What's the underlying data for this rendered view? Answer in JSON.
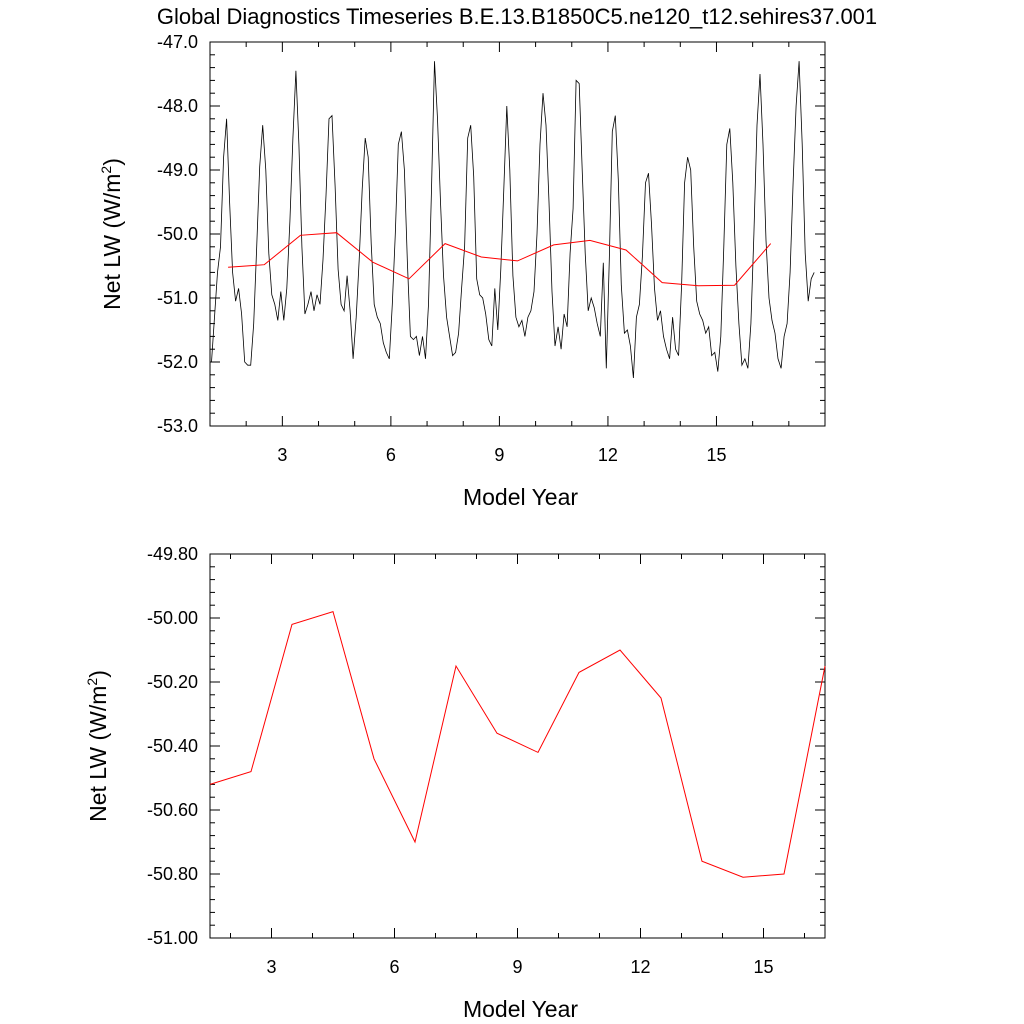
{
  "title": "Global Diagnostics Timeseries B.E.13.B1850C5.ne120_t12.sehires37.001",
  "chart_data": [
    {
      "type": "line",
      "xlabel": "Model Year",
      "ylabel_main": "Net LW (W/m",
      "ylabel_sup": "2",
      "ylabel_close": ")",
      "xlim": [
        1.0,
        18.0
      ],
      "ylim": [
        -53.0,
        -47.0
      ],
      "xticks": [
        3,
        6,
        9,
        12,
        15
      ],
      "yticks": [
        -53.0,
        -52.0,
        -51.0,
        -50.0,
        -49.0,
        -48.0,
        -47.0
      ],
      "ytick_labels": [
        "-53.0",
        "-52.0",
        "-51.0",
        "-50.0",
        "-49.0",
        "-48.0",
        "-47.0"
      ],
      "grid": false,
      "series": [
        {
          "color": "#000000",
          "x_start": 1.0417,
          "x_step": 0.0833,
          "values": [
            -52.0,
            -51.3,
            -50.6,
            -50.2,
            -48.8,
            -48.2,
            -49.5,
            -50.6,
            -51.05,
            -50.85,
            -51.25,
            -52.0,
            -52.05,
            -52.05,
            -51.4,
            -50.2,
            -48.95,
            -48.3,
            -49.0,
            -50.3,
            -50.95,
            -51.1,
            -51.35,
            -50.9,
            -51.35,
            -50.85,
            -49.8,
            -48.5,
            -47.45,
            -48.6,
            -50.2,
            -51.25,
            -51.1,
            -50.9,
            -51.2,
            -50.95,
            -51.1,
            -50.4,
            -49.4,
            -48.2,
            -48.15,
            -49.25,
            -50.55,
            -51.1,
            -51.2,
            -50.65,
            -51.2,
            -51.95,
            -51.3,
            -50.4,
            -49.3,
            -48.5,
            -48.8,
            -50.15,
            -51.1,
            -51.3,
            -51.4,
            -51.7,
            -51.85,
            -51.95,
            -51.1,
            -50.0,
            -48.6,
            -48.4,
            -49.0,
            -50.45,
            -51.6,
            -51.65,
            -51.6,
            -51.9,
            -51.6,
            -51.95,
            -51.1,
            -49.3,
            -47.3,
            -48.2,
            -49.5,
            -50.65,
            -51.3,
            -51.6,
            -51.9,
            -51.85,
            -51.55,
            -50.85,
            -50.2,
            -48.5,
            -48.3,
            -49.1,
            -50.7,
            -50.95,
            -51.0,
            -51.25,
            -51.65,
            -51.75,
            -50.85,
            -51.5,
            -50.55,
            -49.3,
            -48.0,
            -49.0,
            -50.65,
            -51.3,
            -51.45,
            -51.35,
            -51.6,
            -51.3,
            -51.2,
            -50.9,
            -50.0,
            -48.6,
            -47.8,
            -48.3,
            -49.5,
            -50.9,
            -51.75,
            -51.45,
            -51.8,
            -51.25,
            -51.45,
            -50.3,
            -49.6,
            -47.6,
            -47.65,
            -49.0,
            -50.3,
            -51.2,
            -51.0,
            -51.15,
            -51.4,
            -51.6,
            -50.45,
            -52.1,
            -50.4,
            -48.4,
            -48.15,
            -49.15,
            -50.8,
            -51.55,
            -51.5,
            -51.75,
            -52.25,
            -51.3,
            -51.1,
            -50.35,
            -49.2,
            -49.05,
            -49.85,
            -50.85,
            -51.35,
            -51.2,
            -51.6,
            -51.8,
            -51.95,
            -51.3,
            -51.8,
            -51.9,
            -50.8,
            -49.2,
            -48.8,
            -49.0,
            -50.2,
            -51.05,
            -51.25,
            -51.35,
            -51.55,
            -51.45,
            -51.9,
            -51.85,
            -52.15,
            -51.6,
            -50.2,
            -48.6,
            -48.35,
            -49.2,
            -50.5,
            -51.4,
            -52.05,
            -51.95,
            -52.1,
            -51.4,
            -50.0,
            -48.3,
            -47.5,
            -48.6,
            -50.1,
            -51.0,
            -51.35,
            -51.55,
            -51.95,
            -52.1,
            -51.6,
            -51.4,
            -50.6,
            -49.2,
            -48.0,
            -47.3,
            -48.6,
            -50.3,
            -51.05,
            -50.7,
            -50.6
          ]
        },
        {
          "color": "#ff0000",
          "x": [
            1.5,
            2.5,
            3.5,
            4.5,
            5.5,
            6.5,
            7.5,
            8.5,
            9.5,
            10.5,
            11.5,
            12.5,
            13.5,
            14.5,
            15.5,
            16.5
          ],
          "values": [
            -50.52,
            -50.48,
            -50.02,
            -49.98,
            -50.44,
            -50.7,
            -50.15,
            -50.36,
            -50.42,
            -50.17,
            -50.1,
            -50.25,
            -50.76,
            -50.81,
            -50.8,
            -50.15
          ]
        }
      ]
    },
    {
      "type": "line",
      "xlabel": "Model Year",
      "ylabel_main": "Net LW (W/m",
      "ylabel_sup": "2",
      "ylabel_close": ")",
      "xlim": [
        1.5,
        16.5
      ],
      "ylim": [
        -51.0,
        -49.8
      ],
      "xticks": [
        3,
        6,
        9,
        12,
        15
      ],
      "yticks": [
        -51.0,
        -50.8,
        -50.6,
        -50.4,
        -50.2,
        -50.0,
        -49.8
      ],
      "ytick_labels": [
        "-51.00",
        "-50.80",
        "-50.60",
        "-50.40",
        "-50.20",
        "-50.00",
        "-49.80"
      ],
      "grid": false,
      "series": [
        {
          "color": "#ff0000",
          "x": [
            1.5,
            2.5,
            3.5,
            4.5,
            5.5,
            6.5,
            7.5,
            8.5,
            9.5,
            10.5,
            11.5,
            12.5,
            13.5,
            14.5,
            15.5,
            16.5
          ],
          "values": [
            -50.52,
            -50.48,
            -50.02,
            -49.98,
            -50.44,
            -50.7,
            -50.15,
            -50.36,
            -50.42,
            -50.17,
            -50.1,
            -50.25,
            -50.76,
            -50.81,
            -50.8,
            -50.15
          ]
        }
      ]
    }
  ]
}
